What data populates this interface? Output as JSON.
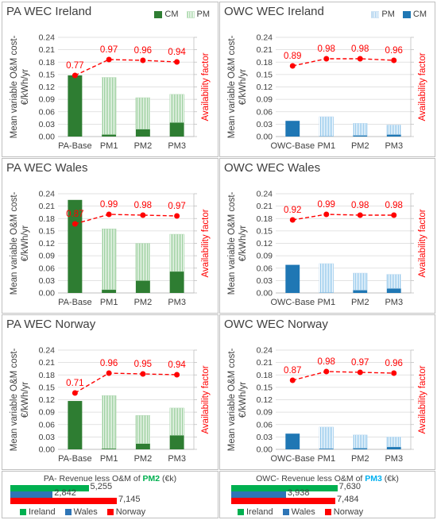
{
  "colors": {
    "cm_pa": "#2e7d32",
    "pm_pa": "#8bc78e",
    "cm_owc": "#1f77b4",
    "pm_owc": "#8cc4ea",
    "avail": "#ff0000",
    "ireland": "#00b050",
    "wales": "#2e75b6",
    "norway": "#ff0000",
    "pm2_text": "#00b050",
    "pm3_text": "#00b0f0"
  },
  "axis": {
    "ylabel_line1": "Mean variable O&M cost-",
    "ylabel_line2": "€/kWh/yr",
    "y2label": "Availability factor",
    "ticks": [
      "0.00",
      "0.03",
      "0.06",
      "0.09",
      "0.12",
      "0.15",
      "0.18",
      "0.21",
      "0.24"
    ]
  },
  "chart_data": [
    {
      "type": "bar",
      "title": "PA WEC Ireland",
      "stacked": true,
      "categories": [
        "PA-Base",
        "PM1",
        "PM2",
        "PM3"
      ],
      "series": [
        {
          "name": "CM",
          "values": [
            0.148,
            0.005,
            0.018,
            0.034
          ]
        },
        {
          "name": "PM",
          "values": [
            0.0,
            0.138,
            0.076,
            0.068
          ]
        }
      ],
      "availability": [
        0.77,
        0.97,
        0.96,
        0.94
      ],
      "availability_labels": [
        "0.77",
        "0.97",
        "0.96",
        "0.94"
      ],
      "ylim": [
        0,
        0.24
      ],
      "legend": "top-right"
    },
    {
      "type": "bar",
      "title": "OWC WEC Ireland",
      "stacked": true,
      "categories": [
        "OWC-Base",
        "PM1",
        "PM2",
        "PM3"
      ],
      "series": [
        {
          "name": "PM",
          "values": [
            0.0,
            0.047,
            0.029,
            0.023
          ]
        },
        {
          "name": "CM",
          "values": [
            0.038,
            0.001,
            0.003,
            0.005
          ]
        }
      ],
      "availability": [
        0.89,
        0.98,
        0.98,
        0.96
      ],
      "availability_labels": [
        "0.89",
        "0.98",
        "0.98",
        "0.96"
      ],
      "ylim": [
        0,
        0.24
      ],
      "legend": "top-right"
    },
    {
      "type": "bar",
      "title": "PA WEC Wales",
      "stacked": true,
      "categories": [
        "PA-Base",
        "PM1",
        "PM2",
        "PM3"
      ],
      "series": [
        {
          "name": "CM",
          "values": [
            0.225,
            0.008,
            0.03,
            0.052
          ]
        },
        {
          "name": "PM",
          "values": [
            0.0,
            0.147,
            0.09,
            0.09
          ]
        }
      ],
      "availability": [
        0.87,
        0.99,
        0.98,
        0.97
      ],
      "availability_labels": [
        "0.87",
        "0.99",
        "0.98",
        "0.97"
      ],
      "ylim": [
        0,
        0.24
      ]
    },
    {
      "type": "bar",
      "title": "OWC WEC Wales",
      "stacked": true,
      "categories": [
        "OWC-Base",
        "PM1",
        "PM2",
        "PM3"
      ],
      "series": [
        {
          "name": "PM",
          "values": [
            0.0,
            0.07,
            0.041,
            0.034
          ]
        },
        {
          "name": "CM",
          "values": [
            0.068,
            0.001,
            0.007,
            0.011
          ]
        }
      ],
      "availability": [
        0.92,
        0.99,
        0.98,
        0.98
      ],
      "availability_labels": [
        "0.92",
        "0.99",
        "0.98",
        "0.98"
      ],
      "ylim": [
        0,
        0.24
      ]
    },
    {
      "type": "bar",
      "title": "PA WEC Norway",
      "stacked": true,
      "categories": [
        "PA-Base",
        "PM1",
        "PM2",
        "PM3"
      ],
      "series": [
        {
          "name": "CM",
          "values": [
            0.117,
            0.002,
            0.014,
            0.034
          ]
        },
        {
          "name": "PM",
          "values": [
            0.0,
            0.128,
            0.068,
            0.066
          ]
        }
      ],
      "availability": [
        0.71,
        0.96,
        0.95,
        0.94
      ],
      "availability_labels": [
        "0.71",
        "0.96",
        "0.95",
        "0.94"
      ],
      "ylim": [
        0,
        0.24
      ]
    },
    {
      "type": "bar",
      "title": "OWC WEC Norway",
      "stacked": true,
      "categories": [
        "OWC-Base",
        "PM1",
        "PM2",
        "PM3"
      ],
      "series": [
        {
          "name": "PM",
          "values": [
            0.0,
            0.052,
            0.032,
            0.024
          ]
        },
        {
          "name": "CM",
          "values": [
            0.038,
            0.002,
            0.003,
            0.006
          ]
        }
      ],
      "availability": [
        0.87,
        0.98,
        0.97,
        0.96
      ],
      "availability_labels": [
        "0.87",
        "0.98",
        "0.97",
        "0.96"
      ],
      "ylim": [
        0,
        0.24
      ]
    },
    {
      "type": "bar",
      "orientation": "horizontal",
      "title_prefix": "PA- Revenue less O&M of ",
      "title_highlight": "PM2",
      "title_suffix": " (€k)",
      "categories": [
        "Ireland",
        "Wales",
        "Norway"
      ],
      "values": [
        5255,
        2842,
        7145
      ],
      "labels": [
        "5,255",
        "2,842",
        "7,145"
      ]
    },
    {
      "type": "bar",
      "orientation": "horizontal",
      "title_prefix": "OWC- Revenue less O&M of ",
      "title_highlight": "PM3",
      "title_suffix": " (€k)",
      "categories": [
        "Ireland",
        "Wales",
        "Norway"
      ],
      "values": [
        7630,
        3938,
        7484
      ],
      "labels": [
        "7,630",
        "3,938",
        "7,484"
      ]
    }
  ]
}
